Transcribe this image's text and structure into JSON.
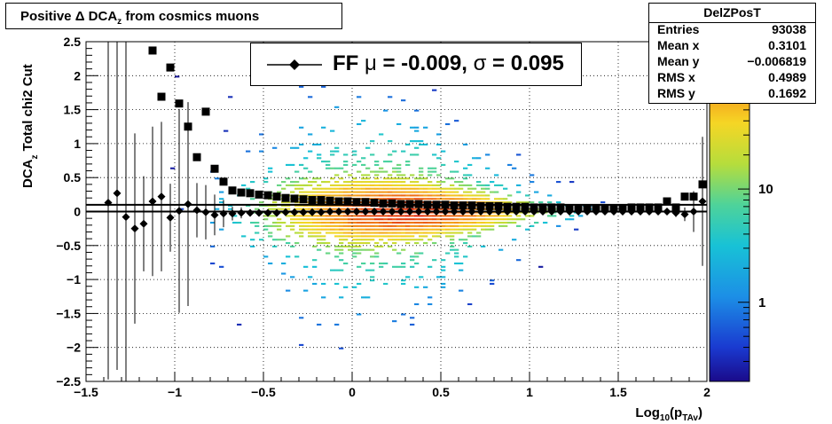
{
  "chart_data": {
    "type": "heatmap",
    "title_parts": {
      "pre": "Positive ",
      "delta": "Δ",
      "dca": " DCA",
      "sub": "z",
      "post": " from cosmics muons"
    },
    "xlabel_parts": {
      "pre": "Log",
      "sub1": "10",
      "mid": "(p",
      "sub2": "TAv",
      "post": ")"
    },
    "ylabel_parts": {
      "pre": "DCA",
      "sub": "z",
      "post": "   Total chi2 Cut"
    },
    "xlim": [
      -1.5,
      2.0
    ],
    "ylim": [
      -2.5,
      2.5
    ],
    "x_ticks": [
      -1.5,
      -1,
      -0.5,
      0,
      0.5,
      1,
      1.5,
      2
    ],
    "x_tick_labels": [
      "−1.5",
      "−1",
      "−0.5",
      "0",
      "0.5",
      "1",
      "1.5",
      "2"
    ],
    "y_ticks": [
      -2.5,
      -2,
      -1.5,
      -1,
      -0.5,
      0,
      0.5,
      1,
      1.5,
      2,
      2.5
    ],
    "y_tick_labels": [
      "−2.5",
      "−2",
      "−1.5",
      "−1",
      "−0.5",
      "0",
      "0.5",
      "1",
      "1.5",
      "2",
      "2.5"
    ],
    "grid": true,
    "colorbar": {
      "scale": "log",
      "min": 0.2,
      "max": 200,
      "tick_values": [
        1,
        10
      ],
      "tick_labels": [
        "1",
        "10"
      ]
    },
    "stats": {
      "name": "DelZPosT",
      "rows": [
        {
          "key": "Entries",
          "value": "93038"
        },
        {
          "key": "Mean x",
          "value": "0.3101"
        },
        {
          "key": "Mean y",
          "value": "−0.006819"
        },
        {
          "key": "RMS x",
          "value": "0.4989"
        },
        {
          "key": "RMS y",
          "value": "0.1692"
        }
      ]
    },
    "legend": {
      "placement": "top-center",
      "parts": {
        "pre": "FF ",
        "mu": "μ",
        "mid": " = -0.009, ",
        "sigma": "σ",
        "post": " =   0.095"
      }
    },
    "reference_line_y": 0.1,
    "zero_line_y": 0,
    "series": [
      {
        "marker": "square",
        "x": [
          -1.125,
          -1.075,
          -1.025,
          -0.975,
          -0.925,
          -0.875,
          -0.825,
          -0.775,
          -0.725,
          -0.675,
          -0.625,
          -0.575,
          -0.525,
          -0.475,
          -0.425,
          -0.375,
          -0.325,
          -0.275,
          -0.225,
          -0.175,
          -0.125,
          -0.075,
          -0.025,
          0.025,
          0.075,
          0.125,
          0.175,
          0.225,
          0.275,
          0.325,
          0.375,
          0.425,
          0.475,
          0.525,
          0.575,
          0.625,
          0.675,
          0.725,
          0.775,
          0.825,
          0.875,
          0.925,
          0.975,
          1.025,
          1.075,
          1.125,
          1.175,
          1.225,
          1.275,
          1.325,
          1.375,
          1.425,
          1.475,
          1.525,
          1.575,
          1.625,
          1.675,
          1.725,
          1.775,
          1.825,
          1.875,
          1.925,
          1.975
        ],
        "y": [
          2.37,
          1.69,
          2.12,
          1.59,
          1.25,
          0.8,
          1.47,
          0.63,
          0.44,
          0.31,
          0.28,
          0.27,
          0.25,
          0.24,
          0.22,
          0.2,
          0.19,
          0.18,
          0.17,
          0.17,
          0.16,
          0.15,
          0.15,
          0.14,
          0.14,
          0.13,
          0.12,
          0.12,
          0.11,
          0.11,
          0.11,
          0.1,
          0.1,
          0.1,
          0.09,
          0.09,
          0.09,
          0.08,
          0.08,
          0.08,
          0.07,
          0.07,
          0.07,
          0.06,
          0.06,
          0.06,
          0.06,
          0.05,
          0.05,
          0.05,
          0.05,
          0.05,
          0.05,
          0.05,
          0.06,
          0.06,
          0.06,
          0.06,
          0.15,
          0.06,
          0.22,
          0.22,
          0.4
        ]
      },
      {
        "marker": "diamond",
        "x": [
          -1.375,
          -1.325,
          -1.275,
          -1.225,
          -1.175,
          -1.125,
          -1.075,
          -1.025,
          -0.975,
          -0.925,
          -0.875,
          -0.825,
          -0.775,
          -0.725,
          -0.675,
          -0.625,
          -0.575,
          -0.525,
          -0.475,
          -0.425,
          -0.375,
          -0.325,
          -0.275,
          -0.225,
          -0.175,
          -0.125,
          -0.075,
          -0.025,
          0.025,
          0.075,
          0.125,
          0.175,
          0.225,
          0.275,
          0.325,
          0.375,
          0.425,
          0.475,
          0.525,
          0.575,
          0.625,
          0.675,
          0.725,
          0.775,
          0.825,
          0.875,
          0.925,
          0.975,
          1.025,
          1.075,
          1.125,
          1.175,
          1.225,
          1.275,
          1.325,
          1.375,
          1.425,
          1.475,
          1.525,
          1.575,
          1.625,
          1.675,
          1.725,
          1.775,
          1.825,
          1.875,
          1.925,
          1.975
        ],
        "y": [
          0.13,
          0.27,
          -0.08,
          -0.25,
          -0.18,
          0.15,
          0.22,
          -0.09,
          0.01,
          0.11,
          0.02,
          -0.01,
          -0.05,
          -0.03,
          -0.03,
          -0.02,
          -0.02,
          -0.02,
          -0.02,
          -0.02,
          -0.01,
          -0.01,
          -0.01,
          -0.01,
          -0.01,
          0.0,
          0.0,
          0.0,
          0.0,
          0.0,
          0.0,
          0.0,
          0.0,
          0.0,
          0.0,
          0.0,
          0.0,
          0.0,
          0.0,
          0.0,
          0.0,
          0.0,
          0.0,
          0.0,
          0.0,
          0.0,
          0.0,
          0.0,
          0.0,
          0.0,
          0.0,
          0.0,
          0.0,
          0.0,
          0.0,
          0.0,
          0.0,
          0.0,
          0.0,
          0.0,
          0.0,
          0.0,
          0.0,
          0.0,
          -0.02,
          -0.04,
          0.0,
          0.15
        ],
        "err": [
          2.6,
          2.6,
          2.6,
          1.4,
          0.7,
          1.1,
          1.1,
          0.5,
          1.5,
          1.5,
          0.4,
          0.4,
          0.3,
          0.2,
          0.1,
          0.08,
          0.05,
          0.04,
          0.03,
          0.03,
          0.02,
          0.02,
          0.02,
          0.02,
          0.01,
          0.01,
          0.01,
          0.01,
          0.01,
          0.01,
          0.01,
          0.01,
          0.01,
          0.01,
          0.01,
          0.01,
          0.01,
          0.01,
          0.01,
          0.01,
          0.01,
          0.01,
          0.01,
          0.01,
          0.01,
          0.01,
          0.01,
          0.01,
          0.01,
          0.01,
          0.01,
          0.01,
          0.01,
          0.01,
          0.01,
          0.01,
          0.01,
          0.01,
          0.01,
          0.01,
          0.01,
          0.01,
          0.01,
          0.03,
          0.06,
          0.1,
          0.3,
          0.95
        ]
      }
    ]
  }
}
